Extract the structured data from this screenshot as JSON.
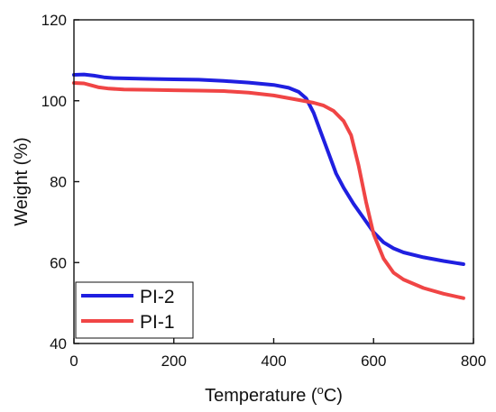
{
  "chart_data": {
    "type": "line",
    "title": "",
    "xlabel_prefix": "Temperature (",
    "xlabel_degree": "o",
    "xlabel_suffix": "C)",
    "ylabel": "Weight (%)",
    "xlim": [
      0,
      800
    ],
    "ylim": [
      40,
      120
    ],
    "xticks": [
      0,
      200,
      400,
      600,
      800
    ],
    "yticks": [
      40,
      60,
      80,
      100,
      120
    ],
    "xtick_labels": [
      "0",
      "200",
      "400",
      "600",
      "800"
    ],
    "ytick_labels": [
      "40",
      "60",
      "80",
      "100",
      "120"
    ],
    "grid": false,
    "legend_position": "bottom-left",
    "series": [
      {
        "name": "PI-2",
        "color": "#1f1fe0",
        "points": [
          [
            0,
            106.4
          ],
          [
            20,
            106.5
          ],
          [
            40,
            106.2
          ],
          [
            60,
            105.8
          ],
          [
            80,
            105.6
          ],
          [
            150,
            105.4
          ],
          [
            200,
            105.3
          ],
          [
            250,
            105.2
          ],
          [
            300,
            104.9
          ],
          [
            350,
            104.5
          ],
          [
            400,
            103.9
          ],
          [
            430,
            103.2
          ],
          [
            450,
            102.2
          ],
          [
            465,
            100.6
          ],
          [
            480,
            97.0
          ],
          [
            495,
            92.0
          ],
          [
            510,
            87.0
          ],
          [
            525,
            82.0
          ],
          [
            540,
            78.5
          ],
          [
            560,
            74.5
          ],
          [
            580,
            71.0
          ],
          [
            600,
            67.5
          ],
          [
            620,
            65.0
          ],
          [
            640,
            63.5
          ],
          [
            660,
            62.5
          ],
          [
            700,
            61.3
          ],
          [
            740,
            60.4
          ],
          [
            780,
            59.6
          ]
        ]
      },
      {
        "name": "PI-1",
        "color": "#f04545",
        "points": [
          [
            0,
            104.4
          ],
          [
            20,
            104.3
          ],
          [
            35,
            103.8
          ],
          [
            50,
            103.3
          ],
          [
            70,
            103.0
          ],
          [
            100,
            102.8
          ],
          [
            150,
            102.7
          ],
          [
            200,
            102.6
          ],
          [
            250,
            102.5
          ],
          [
            300,
            102.4
          ],
          [
            350,
            102.0
          ],
          [
            400,
            101.3
          ],
          [
            450,
            100.2
          ],
          [
            480,
            99.5
          ],
          [
            500,
            98.8
          ],
          [
            520,
            97.5
          ],
          [
            540,
            95.0
          ],
          [
            555,
            91.5
          ],
          [
            570,
            84.0
          ],
          [
            585,
            75.0
          ],
          [
            600,
            67.0
          ],
          [
            620,
            61.0
          ],
          [
            640,
            57.5
          ],
          [
            660,
            55.8
          ],
          [
            700,
            53.7
          ],
          [
            740,
            52.3
          ],
          [
            780,
            51.2
          ]
        ]
      }
    ]
  }
}
